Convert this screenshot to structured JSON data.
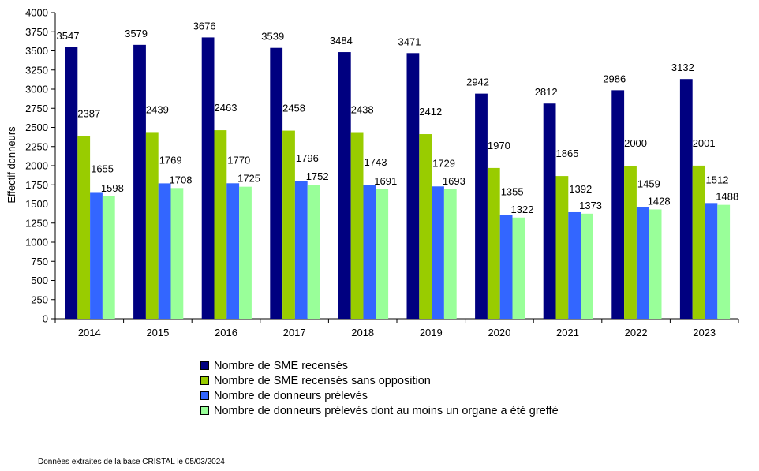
{
  "chart_data": {
    "type": "bar",
    "categories": [
      "2014",
      "2015",
      "2016",
      "2017",
      "2018",
      "2019",
      "2020",
      "2021",
      "2022",
      "2023"
    ],
    "series": [
      {
        "name": "Nombre de SME recensés",
        "color": "#000080",
        "values": [
          3547,
          3579,
          3676,
          3539,
          3484,
          3471,
          2942,
          2812,
          2986,
          3132
        ]
      },
      {
        "name": "Nombre de SME recensés sans opposition",
        "color": "#99CC00",
        "values": [
          2387,
          2439,
          2463,
          2458,
          2438,
          2412,
          1970,
          1865,
          2000,
          2001
        ]
      },
      {
        "name": "Nombre de donneurs prélevés",
        "color": "#3366FF",
        "values": [
          1655,
          1769,
          1770,
          1796,
          1743,
          1729,
          1355,
          1392,
          1459,
          1512
        ]
      },
      {
        "name": "Nombre de donneurs prélevés dont au moins un organe a été greffé",
        "color": "#99FF99",
        "values": [
          1598,
          1708,
          1725,
          1752,
          1691,
          1693,
          1322,
          1373,
          1428,
          1488
        ]
      }
    ],
    "ylabel": "Effectif donneurs",
    "xlabel": "",
    "ylim": [
      0,
      4000
    ],
    "ytick_step": 250,
    "grid": false,
    "legend_position": "bottom"
  },
  "footnote": "Données extraites de la base CRISTAL le 05/03/2024"
}
